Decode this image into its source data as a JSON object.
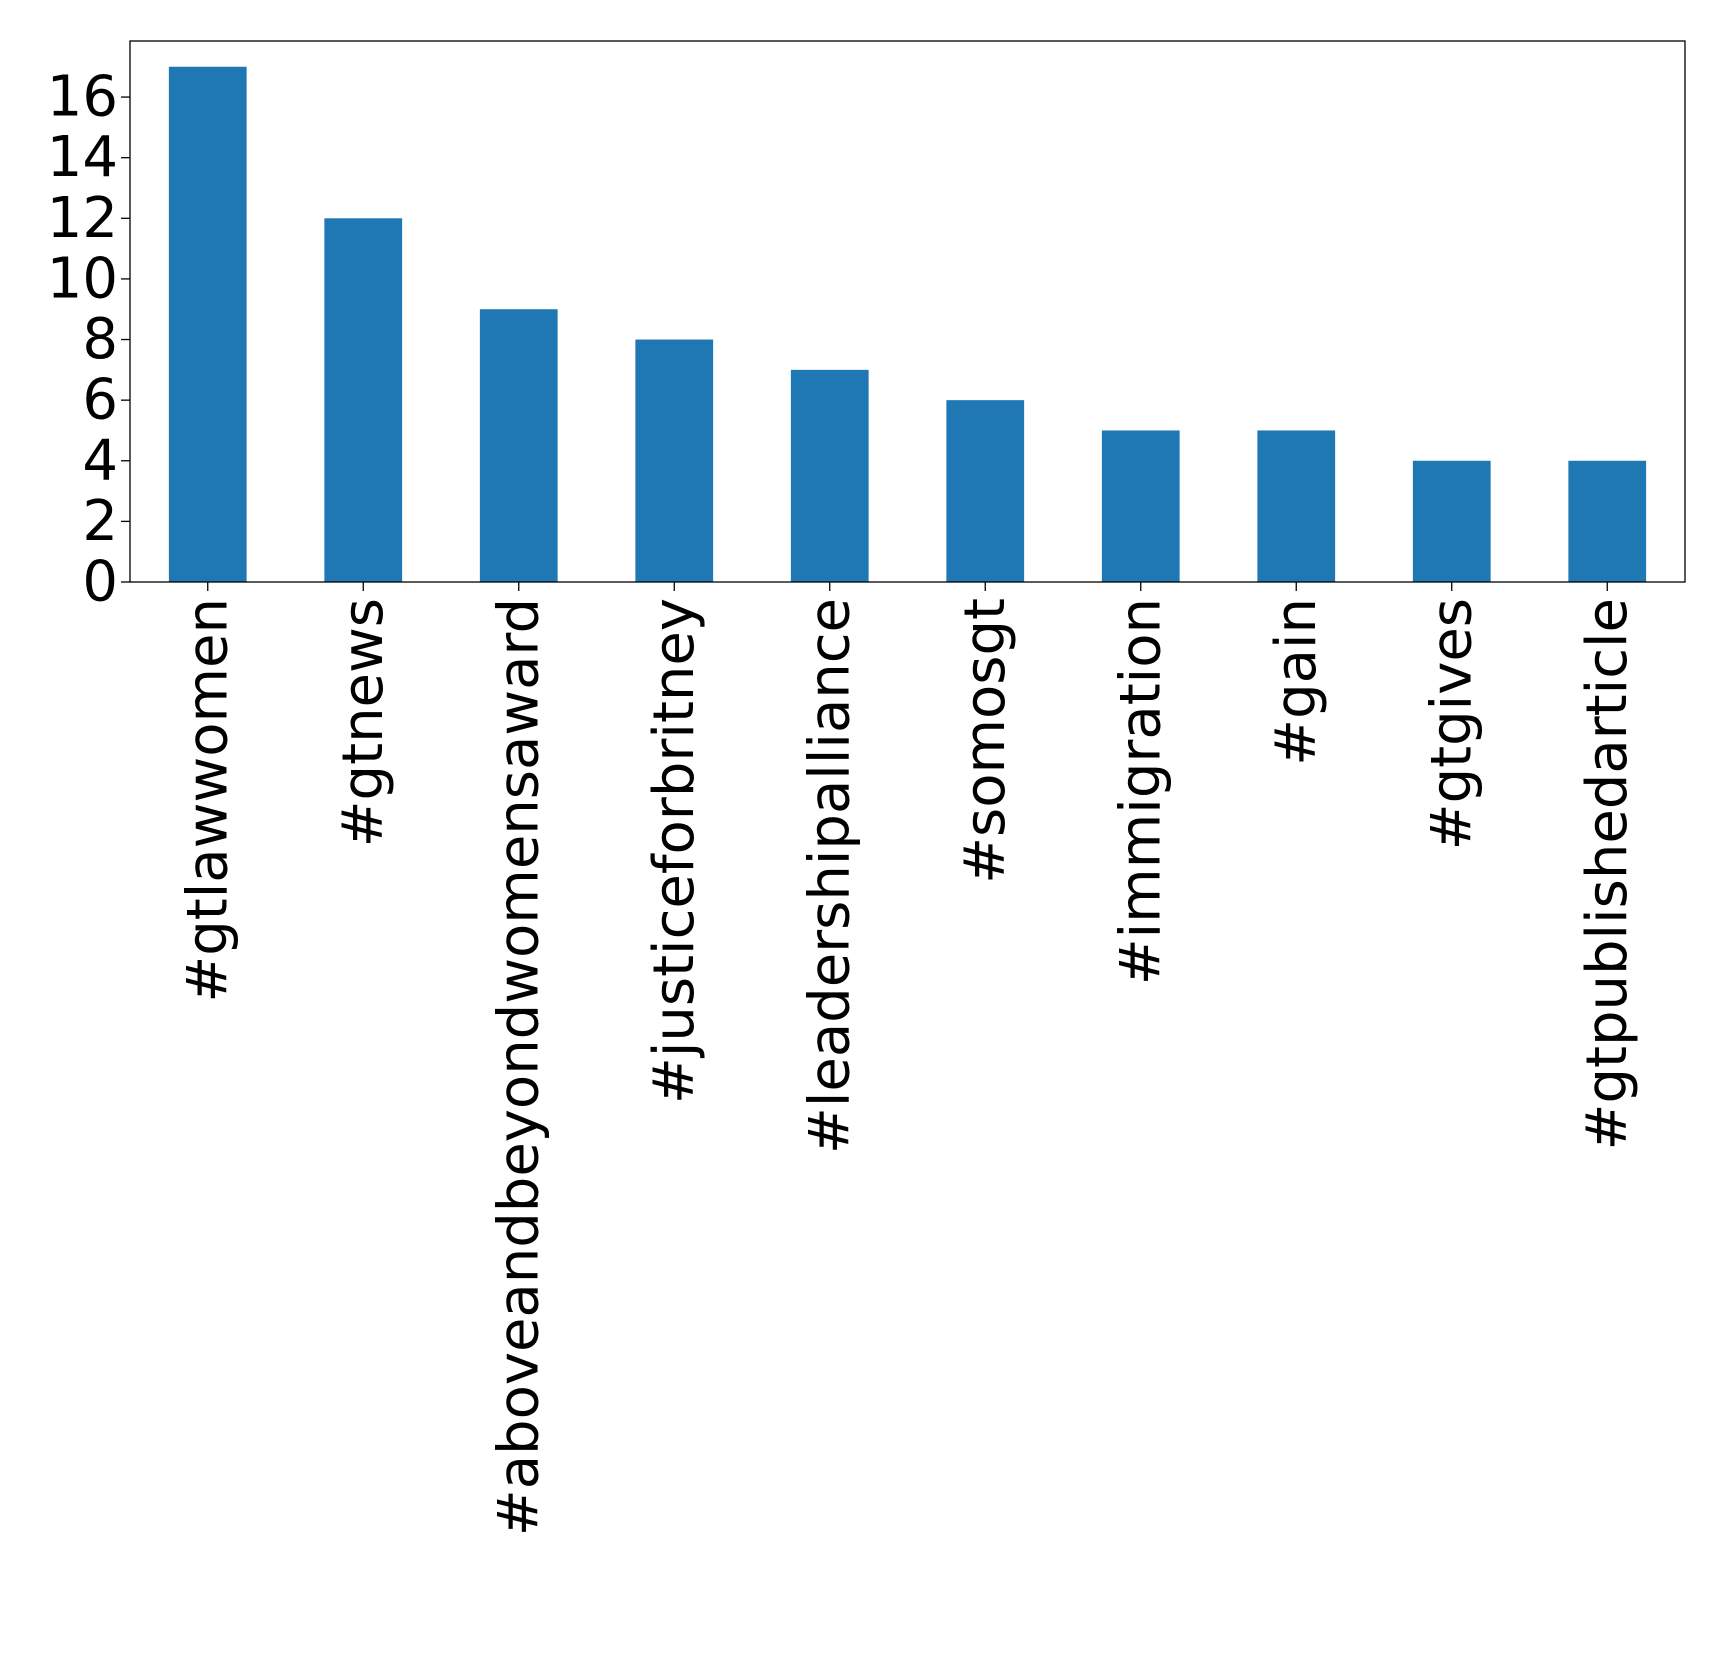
{
  "chart_data": {
    "type": "bar",
    "title": "",
    "xlabel": "",
    "ylabel": "",
    "categories": [
      "#gtlawwomen",
      "#gtnews",
      "#aboveandbeyondwomensaward",
      "#justiceforbritney",
      "#leadershipalliance",
      "#somosgt",
      "#immigration",
      "#gain",
      "#gtgives",
      "#gtpublishedarticle"
    ],
    "values": [
      17,
      12,
      9,
      8,
      7,
      6,
      5,
      5,
      4,
      4
    ],
    "ylim": [
      0,
      17.85
    ],
    "yticks": [
      0,
      2,
      4,
      6,
      8,
      10,
      12,
      14,
      16
    ],
    "grid": false,
    "legend": "none",
    "colors": {
      "bar": "#1f77b4",
      "axis": "#000000",
      "background": "#ffffff"
    }
  }
}
